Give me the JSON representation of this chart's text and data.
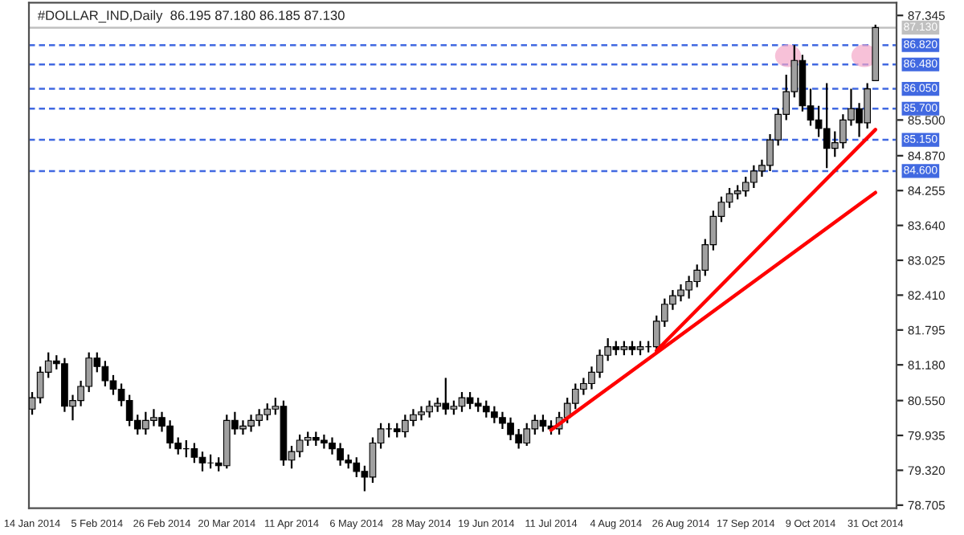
{
  "chart_data": {
    "type": "candlestick",
    "title": "#DOLLAR_IND,Daily  86.195 87.180 86.185 87.130",
    "categories": [
      "14 Jan 2014",
      null,
      null,
      null,
      null,
      null,
      null,
      null,
      "5 Feb 2014",
      null,
      null,
      null,
      null,
      null,
      null,
      null,
      "26 Feb 2014",
      null,
      null,
      null,
      null,
      null,
      null,
      null,
      "20 Mar 2014",
      null,
      null,
      null,
      null,
      null,
      null,
      null,
      "11 Apr 2014",
      null,
      null,
      null,
      null,
      null,
      null,
      null,
      "6 May 2014",
      null,
      null,
      null,
      null,
      null,
      null,
      null,
      "28 May 2014",
      null,
      null,
      null,
      null,
      null,
      null,
      null,
      "19 Jun 2014",
      null,
      null,
      null,
      null,
      null,
      null,
      null,
      "11 Jul 2014",
      null,
      null,
      null,
      null,
      null,
      null,
      null,
      "4 Aug 2014",
      null,
      null,
      null,
      null,
      null,
      null,
      null,
      "26 Aug 2014",
      null,
      null,
      null,
      null,
      null,
      null,
      null,
      "17 Sep 2014",
      null,
      null,
      null,
      null,
      null,
      null,
      null,
      "9 Oct 2014",
      null,
      null,
      null,
      null,
      null,
      null,
      null,
      "31 Oct 2014"
    ],
    "ohlc": [
      [
        80.4,
        80.7,
        80.3,
        80.6
      ],
      [
        80.6,
        81.15,
        80.5,
        81.05
      ],
      [
        81.05,
        81.4,
        80.95,
        81.25
      ],
      [
        81.25,
        81.35,
        81.1,
        81.2
      ],
      [
        81.2,
        81.3,
        80.35,
        80.45
      ],
      [
        80.45,
        80.65,
        80.2,
        80.55
      ],
      [
        80.55,
        80.9,
        80.45,
        80.8
      ],
      [
        80.8,
        81.4,
        80.7,
        81.3
      ],
      [
        81.3,
        81.4,
        81.05,
        81.15
      ],
      [
        81.15,
        81.25,
        80.8,
        80.9
      ],
      [
        80.9,
        81.0,
        80.65,
        80.75
      ],
      [
        80.75,
        80.85,
        80.45,
        80.55
      ],
      [
        80.55,
        80.65,
        80.1,
        80.2
      ],
      [
        80.2,
        80.3,
        79.95,
        80.05
      ],
      [
        80.05,
        80.35,
        79.95,
        80.2
      ],
      [
        80.2,
        80.4,
        80.1,
        80.25
      ],
      [
        80.25,
        80.35,
        80.0,
        80.1
      ],
      [
        80.1,
        80.2,
        79.7,
        79.8
      ],
      [
        79.8,
        79.9,
        79.6,
        79.7
      ],
      [
        79.7,
        79.85,
        79.55,
        79.7
      ],
      [
        79.7,
        79.8,
        79.45,
        79.55
      ],
      [
        79.55,
        79.65,
        79.3,
        79.45
      ],
      [
        79.45,
        79.6,
        79.35,
        79.45
      ],
      [
        79.45,
        79.55,
        79.3,
        79.4
      ],
      [
        79.4,
        80.3,
        79.35,
        80.2
      ],
      [
        80.2,
        80.35,
        79.95,
        80.05
      ],
      [
        80.05,
        80.2,
        79.95,
        80.1
      ],
      [
        80.1,
        80.3,
        80.0,
        80.2
      ],
      [
        80.2,
        80.4,
        80.1,
        80.3
      ],
      [
        80.3,
        80.5,
        80.2,
        80.4
      ],
      [
        80.4,
        80.6,
        80.3,
        80.45
      ],
      [
        80.45,
        80.55,
        79.4,
        79.5
      ],
      [
        79.5,
        79.75,
        79.35,
        79.65
      ],
      [
        79.65,
        79.95,
        79.55,
        79.85
      ],
      [
        79.85,
        80.0,
        79.75,
        79.9
      ],
      [
        79.9,
        80.0,
        79.75,
        79.85
      ],
      [
        79.85,
        79.95,
        79.7,
        79.8
      ],
      [
        79.8,
        79.9,
        79.6,
        79.7
      ],
      [
        79.7,
        79.8,
        79.4,
        79.5
      ],
      [
        79.5,
        79.6,
        79.35,
        79.45
      ],
      [
        79.45,
        79.55,
        79.2,
        79.3
      ],
      [
        79.3,
        79.4,
        78.95,
        79.2
      ],
      [
        79.2,
        79.9,
        79.1,
        79.8
      ],
      [
        79.8,
        80.15,
        79.7,
        80.05
      ],
      [
        80.05,
        80.15,
        79.9,
        80.05
      ],
      [
        80.05,
        80.15,
        79.9,
        80.0
      ],
      [
        80.0,
        80.3,
        79.9,
        80.2
      ],
      [
        80.2,
        80.4,
        80.1,
        80.3
      ],
      [
        80.3,
        80.45,
        80.2,
        80.35
      ],
      [
        80.35,
        80.55,
        80.25,
        80.45
      ],
      [
        80.45,
        80.6,
        80.35,
        80.5
      ],
      [
        80.5,
        80.95,
        80.3,
        80.4
      ],
      [
        80.4,
        80.55,
        80.3,
        80.45
      ],
      [
        80.45,
        80.7,
        80.35,
        80.6
      ],
      [
        80.6,
        80.7,
        80.4,
        80.5
      ],
      [
        80.5,
        80.6,
        80.35,
        80.45
      ],
      [
        80.45,
        80.55,
        80.25,
        80.35
      ],
      [
        80.35,
        80.45,
        80.15,
        80.25
      ],
      [
        80.25,
        80.35,
        80.05,
        80.15
      ],
      [
        80.15,
        80.25,
        79.85,
        79.95
      ],
      [
        79.95,
        80.05,
        79.7,
        79.8
      ],
      [
        79.8,
        80.15,
        79.75,
        80.05
      ],
      [
        80.05,
        80.3,
        79.95,
        80.2
      ],
      [
        80.2,
        80.3,
        80.0,
        80.1
      ],
      [
        80.1,
        80.2,
        79.95,
        80.05
      ],
      [
        80.05,
        80.35,
        79.95,
        80.25
      ],
      [
        80.25,
        80.6,
        80.15,
        80.5
      ],
      [
        80.5,
        80.85,
        80.4,
        80.75
      ],
      [
        80.75,
        80.95,
        80.65,
        80.85
      ],
      [
        80.85,
        81.15,
        80.75,
        81.05
      ],
      [
        81.05,
        81.45,
        80.95,
        81.35
      ],
      [
        81.35,
        81.65,
        81.25,
        81.5
      ],
      [
        81.5,
        81.6,
        81.35,
        81.45
      ],
      [
        81.45,
        81.6,
        81.35,
        81.5
      ],
      [
        81.5,
        81.6,
        81.35,
        81.45
      ],
      [
        81.45,
        81.6,
        81.35,
        81.5
      ],
      [
        81.5,
        81.6,
        81.4,
        81.5
      ],
      [
        81.5,
        82.05,
        81.4,
        81.95
      ],
      [
        81.95,
        82.35,
        81.85,
        82.25
      ],
      [
        82.25,
        82.5,
        82.15,
        82.4
      ],
      [
        82.4,
        82.6,
        82.3,
        82.5
      ],
      [
        82.5,
        82.75,
        82.35,
        82.65
      ],
      [
        82.65,
        82.95,
        82.55,
        82.85
      ],
      [
        82.85,
        83.4,
        82.75,
        83.3
      ],
      [
        83.3,
        83.9,
        83.2,
        83.8
      ],
      [
        83.8,
        84.15,
        83.7,
        84.05
      ],
      [
        84.05,
        84.3,
        83.95,
        84.2
      ],
      [
        84.2,
        84.35,
        84.1,
        84.25
      ],
      [
        84.25,
        84.5,
        84.15,
        84.4
      ],
      [
        84.4,
        84.7,
        84.3,
        84.6
      ],
      [
        84.6,
        84.8,
        84.5,
        84.7
      ],
      [
        84.7,
        85.25,
        84.6,
        85.15
      ],
      [
        85.15,
        85.7,
        85.05,
        85.6
      ],
      [
        85.6,
        86.3,
        85.5,
        86.0
      ],
      [
        86.0,
        86.82,
        85.9,
        86.55
      ],
      [
        86.55,
        86.65,
        85.65,
        85.75
      ],
      [
        85.75,
        86.05,
        85.4,
        85.5
      ],
      [
        85.5,
        85.75,
        85.2,
        85.35
      ],
      [
        85.35,
        86.15,
        84.65,
        85.0
      ],
      [
        85.0,
        85.3,
        84.85,
        85.1
      ],
      [
        85.1,
        85.6,
        85.0,
        85.5
      ],
      [
        85.5,
        86.05,
        85.4,
        85.7
      ],
      [
        85.7,
        85.8,
        85.2,
        85.45
      ],
      [
        85.45,
        86.15,
        85.35,
        86.05
      ],
      [
        86.195,
        87.18,
        86.185,
        87.13
      ]
    ],
    "series": [
      {
        "type": "line",
        "color": "#ff0000",
        "values": [
          null,
          null,
          null,
          null,
          null,
          null,
          null,
          null,
          null,
          null,
          null,
          null,
          null,
          null,
          null,
          null,
          null,
          null,
          null,
          null,
          null,
          null,
          null,
          null,
          null,
          null,
          null,
          null,
          null,
          null,
          null,
          null,
          null,
          null,
          null,
          null,
          null,
          null,
          null,
          null,
          null,
          null,
          null,
          null,
          null,
          null,
          null,
          null,
          null,
          null,
          null,
          null,
          null,
          null,
          null,
          null,
          null,
          null,
          null,
          null,
          null,
          null,
          null,
          null,
          80.03,
          null,
          null,
          null,
          null,
          null,
          null,
          null,
          null,
          null,
          null,
          null,
          null,
          null,
          null,
          null,
          null,
          null,
          null,
          null,
          null,
          null,
          null,
          null,
          null,
          null,
          null,
          null,
          null,
          null,
          null,
          null,
          null,
          null,
          null,
          null,
          null,
          null,
          null,
          null,
          84.22
        ]
      },
      {
        "type": "line",
        "color": "#ff0000",
        "values": [
          null,
          null,
          null,
          null,
          null,
          null,
          null,
          null,
          null,
          null,
          null,
          null,
          null,
          null,
          null,
          null,
          null,
          null,
          null,
          null,
          null,
          null,
          null,
          null,
          null,
          null,
          null,
          null,
          null,
          null,
          null,
          null,
          null,
          null,
          null,
          null,
          null,
          null,
          null,
          null,
          null,
          null,
          null,
          null,
          null,
          null,
          null,
          null,
          null,
          null,
          null,
          null,
          null,
          null,
          null,
          null,
          null,
          null,
          null,
          null,
          null,
          null,
          null,
          null,
          null,
          null,
          null,
          null,
          null,
          null,
          null,
          null,
          null,
          null,
          null,
          null,
          null,
          81.43,
          null,
          null,
          null,
          null,
          null,
          null,
          null,
          null,
          null,
          null,
          null,
          null,
          null,
          null,
          null,
          null,
          null,
          null,
          null,
          null,
          null,
          null,
          null,
          null,
          null,
          null,
          85.33
        ]
      }
    ],
    "ylim": [
      78.65,
      87.57
    ],
    "yticks": [
      {
        "value": 87.345,
        "label": "87.345"
      },
      {
        "value": 85.5,
        "label": "85.500"
      },
      {
        "value": 84.87,
        "label": "84.870"
      },
      {
        "value": 84.255,
        "label": "84.255"
      },
      {
        "value": 83.64,
        "label": "83.640"
      },
      {
        "value": 83.025,
        "label": "83.025"
      },
      {
        "value": 82.41,
        "label": "82.410"
      },
      {
        "value": 81.795,
        "label": "81.795"
      },
      {
        "value": 81.18,
        "label": "81.180"
      },
      {
        "value": 80.55,
        "label": "80.550"
      },
      {
        "value": 79.935,
        "label": "79.935"
      },
      {
        "value": 79.32,
        "label": "79.320"
      },
      {
        "value": 78.705,
        "label": "78.705"
      }
    ],
    "ref_lines": [
      {
        "axis": "y",
        "value": 87.13,
        "label": "87.130",
        "color": "#c0c0c0",
        "line_style": "solid"
      },
      {
        "axis": "y",
        "value": 86.82,
        "label": "86.820",
        "color": "#4169e1",
        "line_style": "dashed"
      },
      {
        "axis": "y",
        "value": 86.48,
        "label": "86.480",
        "color": "#4169e1",
        "line_style": "dashed"
      },
      {
        "axis": "y",
        "value": 86.05,
        "label": "86.050",
        "color": "#4169e1",
        "line_style": "dashed"
      },
      {
        "axis": "y",
        "value": 85.7,
        "label": "85.700",
        "color": "#4169e1",
        "line_style": "dashed"
      },
      {
        "axis": "y",
        "value": 85.15,
        "label": "85.150",
        "color": "#4169e1",
        "line_style": "dashed"
      },
      {
        "axis": "y",
        "value": 84.6,
        "label": "84.600",
        "color": "#4169e1",
        "line_style": "dashed"
      }
    ]
  }
}
